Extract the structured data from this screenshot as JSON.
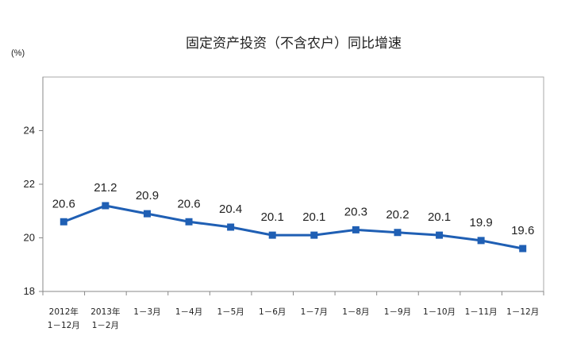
{
  "chart_data": {
    "type": "line",
    "title": "固定资产投资（不含农户）同比增速",
    "ylabel": "(%)",
    "xlabel": "",
    "ylim": [
      18,
      26
    ],
    "yticks": [
      18,
      20,
      22,
      24
    ],
    "grid": false,
    "legend": "none",
    "categories": [
      [
        "2012年",
        "1－12月"
      ],
      [
        "2013年",
        "1－2月"
      ],
      [
        "1－3月"
      ],
      [
        "1－4月"
      ],
      [
        "1－5月"
      ],
      [
        "1－6月"
      ],
      [
        "1－7月"
      ],
      [
        "1－8月"
      ],
      [
        "1－9月"
      ],
      [
        "1－10月"
      ],
      [
        "1－11月"
      ],
      [
        "1－12月"
      ]
    ],
    "series": [
      {
        "values": [
          20.6,
          21.2,
          20.9,
          20.6,
          20.4,
          20.1,
          20.1,
          20.3,
          20.2,
          20.1,
          19.9,
          19.6
        ],
        "labels": [
          "20.6",
          "21.2",
          "20.9",
          "20.6",
          "20.4",
          "20.1",
          "20.1",
          "20.3",
          "20.2",
          "20.1",
          "19.9",
          "19.6"
        ],
        "color": "#1f5fb4"
      }
    ]
  }
}
